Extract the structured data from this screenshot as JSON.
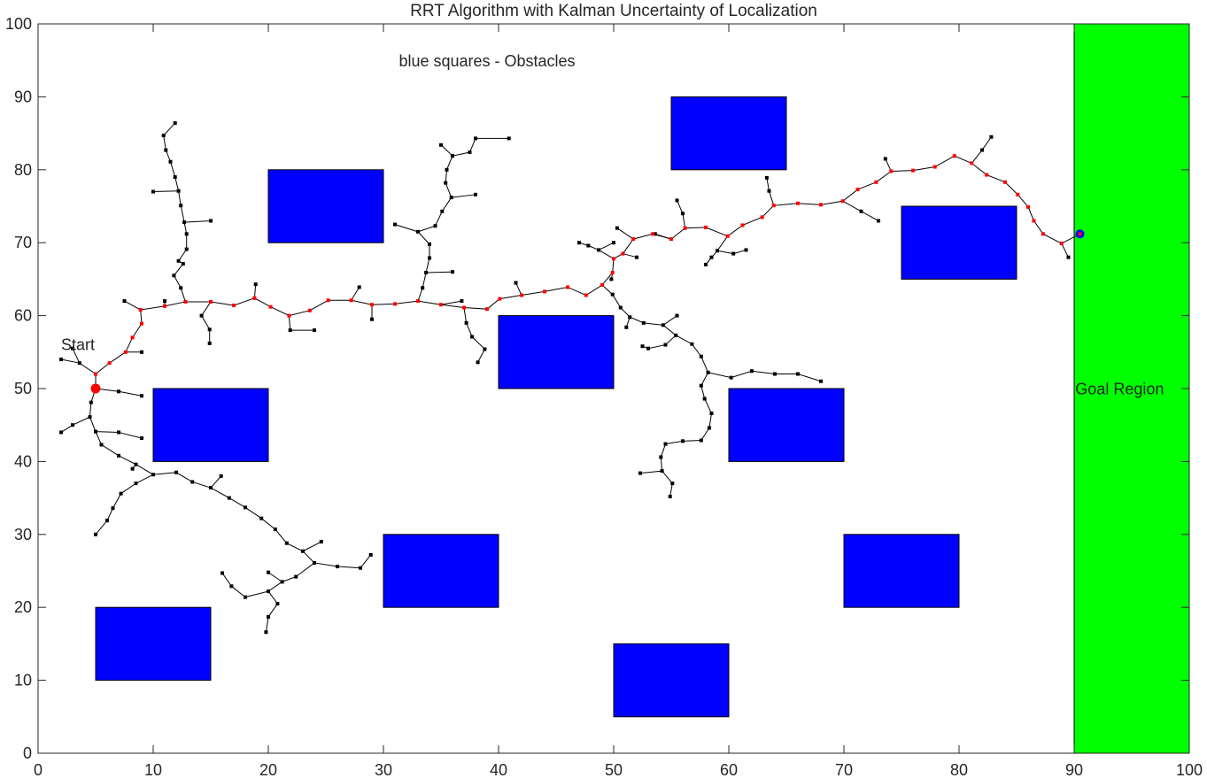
{
  "chart_data": {
    "type": "scatter",
    "title": "RRT Algorithm with Kalman Uncertainty of Localization",
    "xlabel": "",
    "ylabel": "",
    "xlim": [
      0,
      100
    ],
    "ylim": [
      0,
      100
    ],
    "xticks": [
      0,
      10,
      20,
      30,
      40,
      50,
      60,
      70,
      80,
      90,
      100
    ],
    "yticks": [
      0,
      10,
      20,
      30,
      40,
      50,
      60,
      70,
      80,
      90,
      100
    ],
    "grid": false,
    "annotations": {
      "obstacles_label": "blue squares - Obstacles",
      "start_label": "Start",
      "goal_label": "Goal Region"
    },
    "colors": {
      "obstacle": "#0000ff",
      "goal_region": "#00ff00",
      "tree": "#000000",
      "path_nodes": "#ff0000",
      "start_marker": "#ff0000",
      "goal_marker": "#0000ff"
    },
    "goal_region": {
      "x": [
        90,
        100
      ],
      "y": [
        0,
        100
      ]
    },
    "obstacles": [
      {
        "x": [
          20,
          30
        ],
        "y": [
          70,
          80
        ]
      },
      {
        "x": [
          55,
          65
        ],
        "y": [
          80,
          90
        ]
      },
      {
        "x": [
          75,
          85
        ],
        "y": [
          65,
          75
        ]
      },
      {
        "x": [
          40,
          50
        ],
        "y": [
          50,
          60
        ]
      },
      {
        "x": [
          10,
          20
        ],
        "y": [
          40,
          50
        ]
      },
      {
        "x": [
          60,
          70
        ],
        "y": [
          40,
          50
        ]
      },
      {
        "x": [
          30,
          40
        ],
        "y": [
          20,
          30
        ]
      },
      {
        "x": [
          70,
          80
        ],
        "y": [
          20,
          30
        ]
      },
      {
        "x": [
          5,
          15
        ],
        "y": [
          10,
          20
        ]
      },
      {
        "x": [
          50,
          60
        ],
        "y": [
          5,
          15
        ]
      }
    ],
    "start": [
      5,
      50
    ],
    "goal": [
      90.5,
      71.2
    ],
    "path": [
      [
        5,
        50
      ],
      [
        5,
        52
      ],
      [
        6.2,
        53.5
      ],
      [
        7.6,
        55
      ],
      [
        8.2,
        57
      ],
      [
        9,
        58.9
      ],
      [
        8.9,
        60.8
      ],
      [
        11,
        61.3
      ],
      [
        12.8,
        61.9
      ],
      [
        15,
        61.9
      ],
      [
        17,
        61.4
      ],
      [
        18.8,
        62.4
      ],
      [
        20.2,
        61.2
      ],
      [
        21.8,
        60
      ],
      [
        23.6,
        60.7
      ],
      [
        25.2,
        62.1
      ],
      [
        27.2,
        62.1
      ],
      [
        29,
        61.5
      ],
      [
        31,
        61.6
      ],
      [
        33,
        62
      ],
      [
        35,
        61.5
      ],
      [
        37,
        61.1
      ],
      [
        39,
        60.9
      ],
      [
        40.1,
        62.3
      ],
      [
        42,
        62.8
      ],
      [
        44,
        63.3
      ],
      [
        46,
        63.9
      ],
      [
        47.6,
        62.8
      ],
      [
        49,
        64.2
      ],
      [
        49.9,
        65.9
      ],
      [
        50,
        67.8
      ],
      [
        50.8,
        68.5
      ],
      [
        51.7,
        70.5
      ],
      [
        53.4,
        71.2
      ],
      [
        55,
        70.5
      ],
      [
        56.2,
        72
      ],
      [
        58,
        72.1
      ],
      [
        59.9,
        70.9
      ],
      [
        61.2,
        72.4
      ],
      [
        62.9,
        73.5
      ],
      [
        63.9,
        75.1
      ],
      [
        66,
        75.4
      ],
      [
        68,
        75.2
      ],
      [
        69.9,
        75.7
      ],
      [
        71.2,
        77.3
      ],
      [
        72.8,
        78.3
      ],
      [
        74.1,
        79.8
      ],
      [
        76,
        79.9
      ],
      [
        77.9,
        80.4
      ],
      [
        79.6,
        81.9
      ],
      [
        81.1,
        80.9
      ],
      [
        82.4,
        79.3
      ],
      [
        84,
        78.3
      ],
      [
        85.1,
        76.6
      ],
      [
        86,
        74.9
      ],
      [
        86.5,
        73
      ],
      [
        87.3,
        71.2
      ],
      [
        88.9,
        69.9
      ],
      [
        90.5,
        71.2
      ]
    ],
    "branches": [
      [
        [
          5,
          52
        ],
        [
          3.6,
          53.5
        ],
        [
          2,
          54
        ]
      ],
      [
        [
          3.6,
          53.5
        ],
        [
          3,
          55.5
        ]
      ],
      [
        [
          5,
          50
        ],
        [
          7,
          49.6
        ],
        [
          9,
          49
        ]
      ],
      [
        [
          5,
          50
        ],
        [
          4.6,
          48.1
        ],
        [
          4.5,
          46.1
        ],
        [
          3,
          45
        ],
        [
          2,
          44
        ]
      ],
      [
        [
          4.5,
          46.1
        ],
        [
          5,
          44.1
        ],
        [
          7,
          44
        ],
        [
          9,
          43.2
        ]
      ],
      [
        [
          5,
          44.1
        ],
        [
          5.5,
          42.3
        ],
        [
          7,
          40.8
        ],
        [
          8.5,
          39.6
        ],
        [
          10,
          38.2
        ],
        [
          12,
          38.5
        ],
        [
          13.4,
          37.2
        ],
        [
          15,
          36.4
        ],
        [
          16.6,
          35
        ],
        [
          18,
          33.7
        ],
        [
          19.4,
          32.2
        ],
        [
          20.6,
          30.7
        ],
        [
          21.6,
          28.8
        ],
        [
          23,
          27.7
        ],
        [
          24,
          26.1
        ],
        [
          26,
          25.6
        ],
        [
          28,
          25.4
        ],
        [
          28.9,
          27.2
        ]
      ],
      [
        [
          8.5,
          39.6
        ],
        [
          8.2,
          39
        ]
      ],
      [
        [
          10,
          38.2
        ],
        [
          8.5,
          37
        ],
        [
          7.2,
          35.6
        ],
        [
          6.5,
          33.6
        ],
        [
          6,
          31.9
        ],
        [
          5,
          30
        ]
      ],
      [
        [
          15,
          36.4
        ],
        [
          15.9,
          38
        ]
      ],
      [
        [
          23,
          27.7
        ],
        [
          24.6,
          29
        ]
      ],
      [
        [
          24,
          26.1
        ],
        [
          22.4,
          24.2
        ],
        [
          21.2,
          23.5
        ],
        [
          20,
          22.2
        ],
        [
          18,
          21.4
        ],
        [
          16.8,
          22.9
        ],
        [
          16,
          24.7
        ]
      ],
      [
        [
          20,
          22.2
        ],
        [
          20.8,
          20.5
        ],
        [
          20,
          18.7
        ],
        [
          19.8,
          16.6
        ]
      ],
      [
        [
          21.2,
          23.5
        ],
        [
          20,
          24.8
        ]
      ],
      [
        [
          7.6,
          55
        ],
        [
          9,
          55
        ]
      ],
      [
        [
          8.9,
          60.8
        ],
        [
          7.5,
          62
        ]
      ],
      [
        [
          11,
          61.3
        ],
        [
          11,
          62
        ]
      ],
      [
        [
          12.8,
          61.9
        ],
        [
          12.4,
          63.8
        ],
        [
          11.8,
          65.5
        ],
        [
          12.6,
          67.1
        ],
        [
          12.2,
          67.5
        ],
        [
          12.9,
          69.1
        ],
        [
          12.9,
          71.2
        ],
        [
          12.7,
          72.8
        ],
        [
          12.4,
          75.1
        ],
        [
          12.2,
          77.1
        ],
        [
          11.9,
          79
        ],
        [
          11.5,
          81.1
        ],
        [
          11.1,
          82.7
        ],
        [
          10.9,
          84.7
        ],
        [
          11.9,
          86.4
        ]
      ],
      [
        [
          12.2,
          77.1
        ],
        [
          10,
          77
        ]
      ],
      [
        [
          12.7,
          72.8
        ],
        [
          15,
          73
        ]
      ],
      [
        [
          15,
          61.9
        ],
        [
          14.2,
          60
        ],
        [
          14.9,
          58.1
        ],
        [
          14.9,
          56.2
        ]
      ],
      [
        [
          18.8,
          62.4
        ],
        [
          18.9,
          64.3
        ]
      ],
      [
        [
          21.8,
          60
        ],
        [
          21.9,
          58
        ],
        [
          24,
          58
        ]
      ],
      [
        [
          27.2,
          62.1
        ],
        [
          27.9,
          63.9
        ]
      ],
      [
        [
          29,
          61.5
        ],
        [
          29,
          59.5
        ]
      ],
      [
        [
          33,
          62
        ],
        [
          33.4,
          63.8
        ],
        [
          33.7,
          65.9
        ],
        [
          34,
          67.9
        ],
        [
          34,
          69.8
        ],
        [
          33,
          71.5
        ],
        [
          31,
          72.5
        ]
      ],
      [
        [
          33.7,
          65.9
        ],
        [
          36,
          66
        ]
      ],
      [
        [
          33,
          71.5
        ],
        [
          34.5,
          72.3
        ],
        [
          35.1,
          74.3
        ],
        [
          35.9,
          76.2
        ],
        [
          35.4,
          78.2
        ],
        [
          35.5,
          80
        ],
        [
          36,
          81.9
        ],
        [
          37.5,
          82.4
        ],
        [
          38,
          84.3
        ],
        [
          40.9,
          84.3
        ]
      ],
      [
        [
          36,
          81.9
        ],
        [
          35,
          83.4
        ]
      ],
      [
        [
          35.9,
          76.2
        ],
        [
          38,
          76.6
        ]
      ],
      [
        [
          35,
          61.5
        ],
        [
          36.8,
          62
        ]
      ],
      [
        [
          37,
          61.1
        ],
        [
          37.2,
          59
        ],
        [
          37.7,
          57.1
        ],
        [
          38.8,
          55.4
        ],
        [
          38.2,
          53.6
        ]
      ],
      [
        [
          42,
          62.8
        ],
        [
          41.5,
          64.5
        ]
      ],
      [
        [
          49,
          64.2
        ],
        [
          49.9,
          62.9
        ],
        [
          50.6,
          61.1
        ],
        [
          51.4,
          59.8
        ],
        [
          52.6,
          59
        ],
        [
          54.3,
          58.7
        ],
        [
          55.5,
          60
        ]
      ],
      [
        [
          51.4,
          59.8
        ],
        [
          51.1,
          58.4
        ]
      ],
      [
        [
          54.3,
          58.7
        ],
        [
          55.4,
          57.3
        ],
        [
          56.8,
          56.1
        ],
        [
          57.6,
          54.4
        ],
        [
          58.2,
          52.2
        ],
        [
          60.2,
          51.5
        ],
        [
          62,
          52.4
        ],
        [
          64,
          52
        ],
        [
          66,
          52
        ],
        [
          68,
          51
        ]
      ],
      [
        [
          55.4,
          57.3
        ],
        [
          54.5,
          56
        ],
        [
          53,
          55.5
        ],
        [
          52.5,
          55.8
        ]
      ],
      [
        [
          58.2,
          52.2
        ],
        [
          57.6,
          50.4
        ],
        [
          57.9,
          48.6
        ],
        [
          58.5,
          46.6
        ],
        [
          58.3,
          44.6
        ],
        [
          57.6,
          42.9
        ],
        [
          56,
          42.8
        ],
        [
          54.5,
          42.4
        ],
        [
          54.1,
          40.6
        ],
        [
          54.2,
          38.7
        ],
        [
          55.1,
          37
        ],
        [
          54.9,
          35.2
        ]
      ],
      [
        [
          54.2,
          38.7
        ],
        [
          52.3,
          38.4
        ]
      ],
      [
        [
          49.9,
          65.9
        ],
        [
          49.8,
          65
        ]
      ],
      [
        [
          50,
          67.8
        ],
        [
          48.7,
          69
        ],
        [
          47.8,
          69.6
        ],
        [
          47,
          70
        ]
      ],
      [
        [
          48.7,
          69
        ],
        [
          50,
          70
        ]
      ],
      [
        [
          50.8,
          68.5
        ],
        [
          52,
          68
        ]
      ],
      [
        [
          51.7,
          70.5
        ],
        [
          50.3,
          72
        ]
      ],
      [
        [
          55,
          70.5
        ],
        [
          53.6,
          71.2
        ]
      ],
      [
        [
          56.2,
          72
        ],
        [
          56,
          74
        ],
        [
          55.5,
          75.8
        ]
      ],
      [
        [
          59.9,
          70.9
        ],
        [
          59,
          68.9
        ],
        [
          58,
          67
        ],
        [
          58.5,
          68
        ]
      ],
      [
        [
          59,
          68.9
        ],
        [
          60.4,
          68.5
        ],
        [
          61.5,
          69
        ]
      ],
      [
        [
          63.9,
          75.1
        ],
        [
          63.5,
          77.1
        ],
        [
          63.3,
          78.9
        ]
      ],
      [
        [
          69.9,
          75.7
        ],
        [
          71.5,
          74.3
        ],
        [
          73,
          73
        ]
      ],
      [
        [
          74.1,
          79.8
        ],
        [
          73.6,
          81.5
        ]
      ],
      [
        [
          81.1,
          80.9
        ],
        [
          82,
          82.7
        ],
        [
          82.8,
          84.5
        ]
      ],
      [
        [
          88.9,
          69.9
        ],
        [
          89.5,
          68
        ]
      ]
    ]
  }
}
